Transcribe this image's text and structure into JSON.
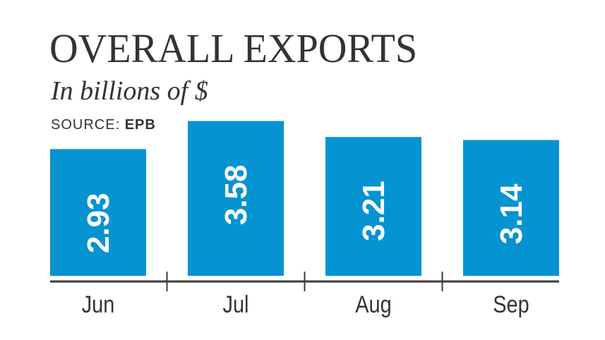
{
  "chart_data": {
    "type": "bar",
    "title": "OVERALL EXPORTS",
    "subtitle": "In billions of $",
    "source_label": "SOURCE:",
    "source": "EPB",
    "categories": [
      "Jun",
      "Jul",
      "Aug",
      "Sep"
    ],
    "values": [
      2.93,
      3.58,
      3.21,
      3.14
    ],
    "value_labels": [
      "2.93",
      "3.58",
      "3.21",
      "3.14"
    ],
    "ylim": [
      0,
      3.6
    ],
    "grid": false,
    "bar_color": "#0693d1",
    "axis_color": "#3a3a3a",
    "label_color": "#ffffff"
  }
}
